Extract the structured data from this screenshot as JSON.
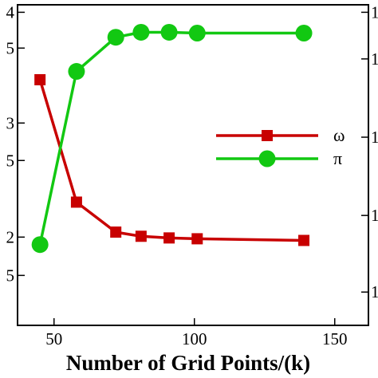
{
  "chart_data": {
    "type": "line",
    "xlabel": "Number of Grid Points/(k)",
    "xlim": [
      37,
      162
    ],
    "x_ticks": [
      50,
      100,
      150
    ],
    "x_tick_labels": [
      "50",
      "100",
      "150"
    ],
    "left_ylim": [
      0,
      3.85
    ],
    "left_y_ticks": [
      0.6,
      1.06,
      1.98,
      2.43,
      3.33,
      3.76
    ],
    "left_y_tick_labels": [
      "5",
      "2",
      "5",
      "3",
      "5",
      "4"
    ],
    "right_y_ticks": [
      0.4,
      1.32,
      2.26,
      3.2,
      3.76
    ],
    "right_y_tick_labels": [
      "1",
      "1",
      "1",
      "1",
      "1"
    ],
    "series": [
      {
        "name": "ω",
        "color": "#c80000",
        "marker": "square",
        "x": [
          45,
          58,
          72,
          81,
          91,
          101,
          139
        ],
        "y": [
          2.95,
          1.48,
          1.12,
          1.07,
          1.05,
          1.04,
          1.02
        ]
      },
      {
        "name": "π",
        "color": "#12c812",
        "marker": "circle",
        "x": [
          45,
          58,
          72,
          81,
          91,
          101,
          139
        ],
        "y": [
          0.97,
          3.05,
          3.46,
          3.52,
          3.52,
          3.51,
          3.51
        ]
      }
    ],
    "legend_position": "right"
  }
}
